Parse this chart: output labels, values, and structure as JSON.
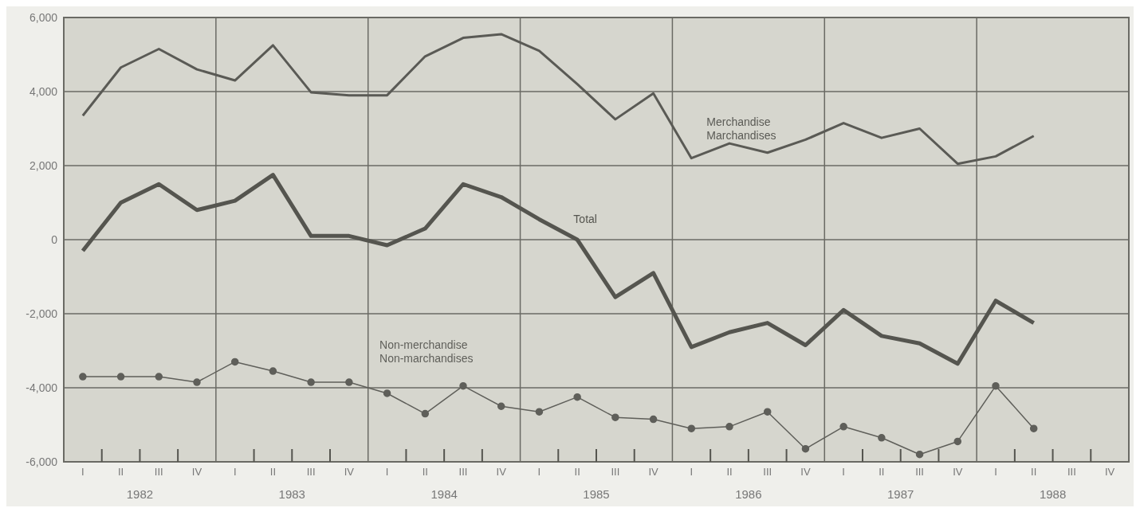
{
  "chart_data": {
    "type": "line",
    "categories": [
      "I",
      "II",
      "III",
      "IV",
      "I",
      "II",
      "III",
      "IV",
      "I",
      "II",
      "III",
      "IV",
      "I",
      "II",
      "III",
      "IV",
      "I",
      "II",
      "III",
      "IV",
      "I",
      "II",
      "III",
      "IV",
      "I",
      "II",
      "III",
      "IV"
    ],
    "series": [
      {
        "name": "Merchandise\nMarchandises",
        "color": "#5a5a55",
        "marker": "none",
        "values": [
          3350,
          4650,
          5150,
          4600,
          4300,
          5250,
          3980,
          3900,
          3900,
          4950,
          5450,
          5550,
          5100,
          4200,
          3250,
          3950,
          2200,
          2600,
          2350,
          2700,
          3150,
          2750,
          3000,
          2050,
          2250,
          2800,
          null,
          null
        ]
      },
      {
        "name": "Total",
        "color": "#55554f",
        "marker": "none",
        "values": [
          -300,
          1000,
          1500,
          800,
          1050,
          1750,
          100,
          100,
          -150,
          300,
          1500,
          1150,
          550,
          0,
          -1550,
          -900,
          -2900,
          -2500,
          -2250,
          -2850,
          -1900,
          -2600,
          -2800,
          -3350,
          -1650,
          -2250,
          null,
          null
        ]
      },
      {
        "name": "Non-merchandise\nNon-marchandises",
        "color": "#5f5f5a",
        "marker": "circle",
        "values": [
          -3700,
          -3700,
          -3700,
          -3850,
          -3300,
          -3550,
          -3850,
          -3850,
          -4150,
          -4700,
          -3950,
          -4500,
          -4650,
          -4250,
          -4800,
          -4850,
          -5100,
          -5050,
          -4650,
          -5650,
          -5050,
          -5350,
          -5800,
          -5450,
          -3950,
          -5100,
          null,
          null
        ]
      }
    ],
    "ylim": [
      -6000,
      6000
    ],
    "yticks": [
      {
        "value": -6000,
        "label": "-6,000"
      },
      {
        "value": -4000,
        "label": "-4,000"
      },
      {
        "value": -2000,
        "label": "-2,000"
      },
      0,
      {
        "value": 2000,
        "label": "2,000"
      },
      {
        "value": 4000,
        "label": "4,000"
      },
      {
        "value": 6000,
        "label": "6,000"
      }
    ],
    "grid": true,
    "annotations": [
      "1982",
      "1983",
      "1984",
      "1985",
      "1986",
      "1987",
      "1988"
    ]
  }
}
